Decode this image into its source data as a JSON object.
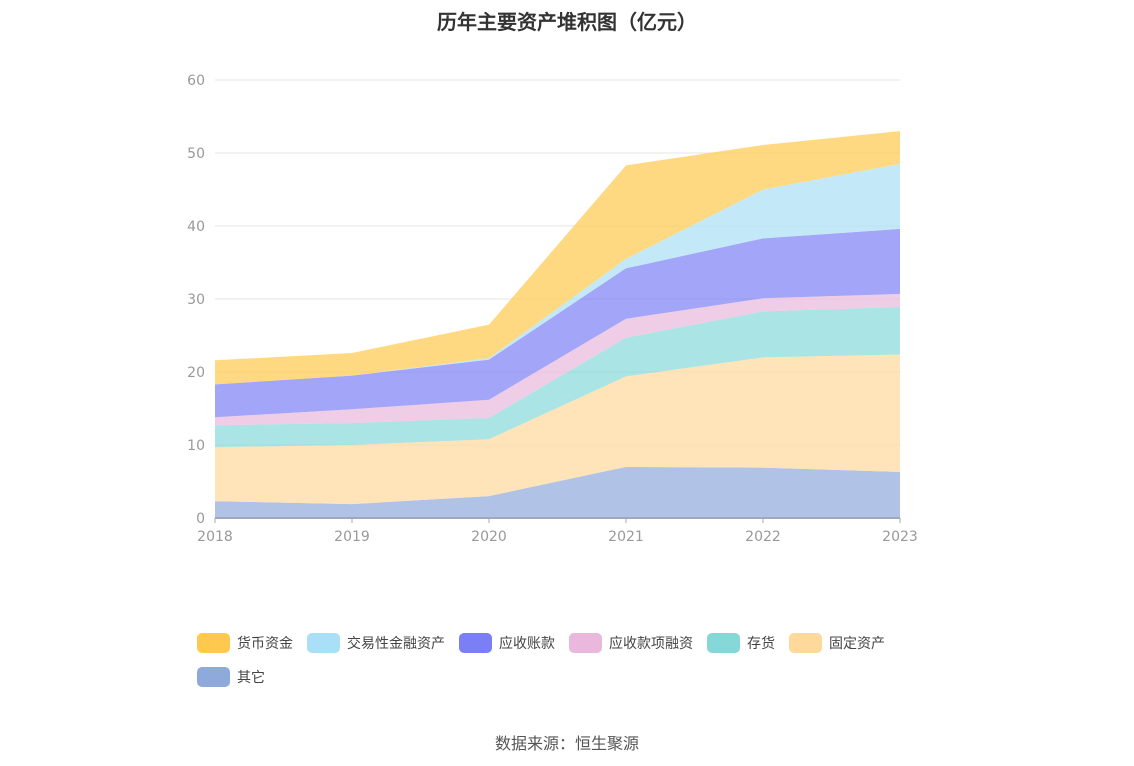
{
  "chart_data": {
    "type": "area",
    "stacked": true,
    "title": "历年主要资产堆积图（亿元）",
    "categories": [
      "2018",
      "2019",
      "2020",
      "2021",
      "2022",
      "2023"
    ],
    "ylim": [
      0,
      60
    ],
    "yticks": [
      "0",
      "10",
      "20",
      "30",
      "40",
      "50",
      "60"
    ],
    "grid": true,
    "legend_position": "bottom",
    "series": [
      {
        "name": "其它",
        "color": "#8eaadb",
        "values": [
          2.3,
          1.9,
          3.0,
          7.0,
          6.9,
          6.3
        ]
      },
      {
        "name": "固定资产",
        "color": "#ffd89b",
        "values": [
          7.4,
          8.1,
          7.8,
          12.4,
          15.1,
          16.1
        ]
      },
      {
        "name": "存货",
        "color": "#86d8d8",
        "values": [
          3.0,
          3.0,
          2.9,
          5.3,
          6.3,
          6.5
        ]
      },
      {
        "name": "应收款项融资",
        "color": "#eab8dc",
        "values": [
          1.1,
          1.9,
          2.5,
          2.6,
          1.8,
          1.8
        ]
      },
      {
        "name": "应收账款",
        "color": "#7b7ff5",
        "values": [
          4.5,
          4.6,
          5.5,
          6.9,
          8.2,
          8.9
        ]
      },
      {
        "name": "交易性金融资产",
        "color": "#a9dff7",
        "values": [
          0.0,
          0.0,
          0.2,
          1.3,
          6.7,
          8.9
        ]
      },
      {
        "name": "货币资金",
        "color": "#ffc94d",
        "values": [
          3.3,
          3.1,
          4.6,
          12.8,
          6.1,
          4.5
        ]
      }
    ],
    "legend_order": [
      "货币资金",
      "交易性金融资产",
      "应收账款",
      "应收款项融资",
      "存货",
      "固定资产",
      "其它"
    ]
  },
  "source_text": "数据来源：恒生聚源"
}
